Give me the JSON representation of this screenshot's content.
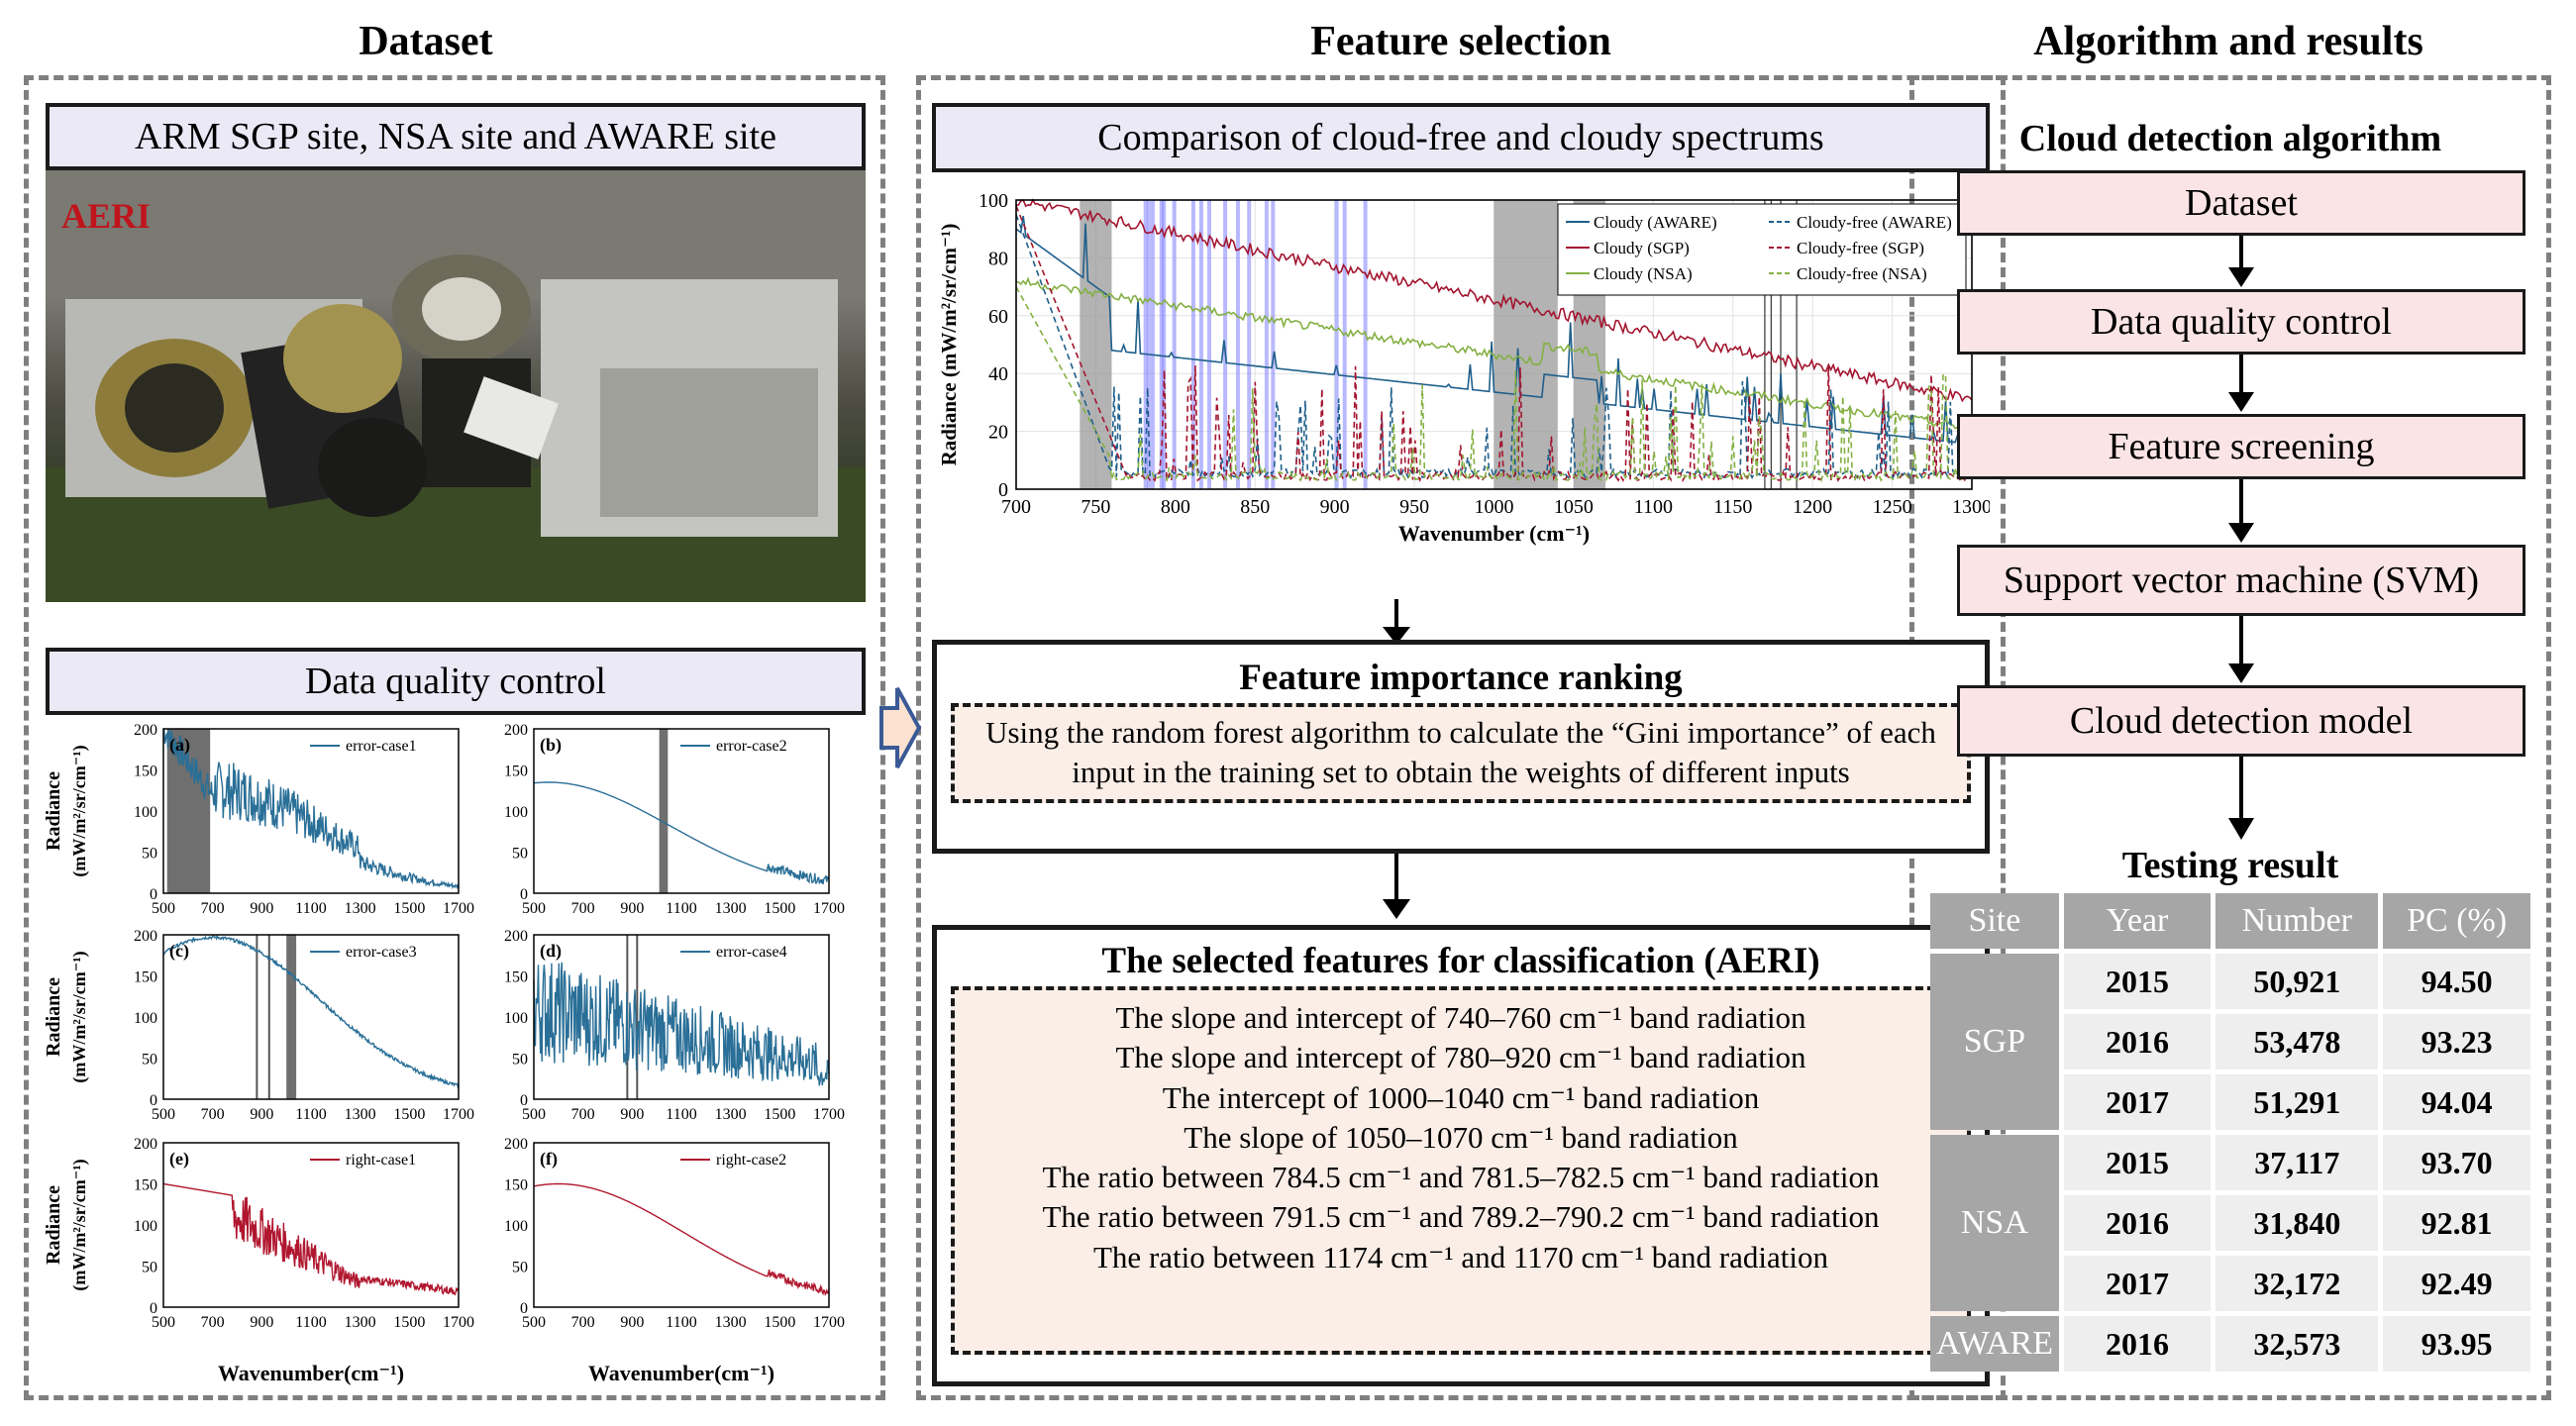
{
  "columns": {
    "dataset": "Dataset",
    "feature": "Feature selection",
    "algorithm": "Algorithm and results"
  },
  "dataset": {
    "sites_label": "ARM SGP site, NSA site and AWARE site",
    "photo_label": "AERI",
    "qc_label": "Data quality control",
    "panels": [
      {
        "tag": "(a)",
        "name": "error-case1"
      },
      {
        "tag": "(b)",
        "name": "error-case2"
      },
      {
        "tag": "(c)",
        "name": "error-case3"
      },
      {
        "tag": "(d)",
        "name": "error-case4"
      },
      {
        "tag": "(e)",
        "name": "right-case1"
      },
      {
        "tag": "(f)",
        "name": "right-case2"
      }
    ],
    "y_ticks": [
      "200",
      "150",
      "100",
      "50",
      "0"
    ],
    "x_ticks": [
      "500",
      "700",
      "900",
      "1100",
      "1300",
      "1500",
      "1700"
    ],
    "ylabel_1": "Radiance",
    "ylabel_2": "(mW/m²/sr/cm⁻¹)",
    "xlabel": "Wavenumber(cm⁻¹)"
  },
  "feature": {
    "comparison_label": "Comparison of cloud-free and cloudy spectrums",
    "legend": [
      "Cloudy (AWARE)",
      "Cloudy-free (AWARE)",
      "Cloudy (SGP)",
      "Cloudy-free (SGP)",
      "Cloudy (NSA)",
      "Cloudy-free (NSA)"
    ],
    "y_ticks": [
      "100",
      "80",
      "60",
      "40",
      "20",
      "0"
    ],
    "x_ticks": [
      "700",
      "750",
      "800",
      "850",
      "900",
      "950",
      "1000",
      "1050",
      "1100",
      "1150",
      "1200",
      "1250",
      "1300"
    ],
    "ylabel": "Radiance (mW/m²/sr/cm⁻¹)",
    "xlabel": "Wavenumber (cm⁻¹)",
    "ranking_title": "Feature importance ranking",
    "ranking_text": "Using the random forest algorithm to calculate the “Gini importance” of each input in the training set to obtain the weights of different inputs",
    "selected_title": "The selected features for classification (AERI)",
    "selected_items": [
      "The slope and intercept of 740–760 cm⁻¹ band radiation",
      "The slope and intercept of 780–920 cm⁻¹ band radiation",
      "The intercept of 1000–1040 cm⁻¹ band radiation",
      "The slope of 1050–1070 cm⁻¹ band radiation",
      "The ratio between 784.5 cm⁻¹ and 781.5–782.5 cm⁻¹ band radiation",
      "The ratio between 791.5 cm⁻¹ and 789.2–790.2 cm⁻¹ band radiation",
      "The ratio between 1174 cm⁻¹ and 1170 cm⁻¹ band radiation"
    ]
  },
  "algorithm": {
    "title": "Cloud detection algorithm",
    "steps": [
      "Dataset",
      "Data quality control",
      "Feature screening",
      "Support vector machine (SVM)",
      "Cloud detection model"
    ],
    "result_title": "Testing result",
    "headers": [
      "Site",
      "Year",
      "Number",
      "PC (%)"
    ],
    "groups": [
      {
        "site": "SGP",
        "rows": [
          [
            "2015",
            "50,921",
            "94.50"
          ],
          [
            "2016",
            "53,478",
            "93.23"
          ],
          [
            "2017",
            "51,291",
            "94.04"
          ]
        ]
      },
      {
        "site": "NSA",
        "rows": [
          [
            "2015",
            "37,117",
            "93.70"
          ],
          [
            "2016",
            "31,840",
            "92.81"
          ],
          [
            "2017",
            "32,172",
            "92.49"
          ]
        ]
      },
      {
        "site": "AWARE",
        "rows": [
          [
            "2016",
            "32,573",
            "93.95"
          ]
        ]
      }
    ]
  },
  "colors": {
    "aware": "#1f5f8b",
    "sgp": "#a3152f",
    "nsa": "#84b043",
    "band": "#7f7fff",
    "gray_band": "#9a9a9a",
    "qc_blue": "#2a6f97",
    "qc_red": "#b0172f"
  }
}
